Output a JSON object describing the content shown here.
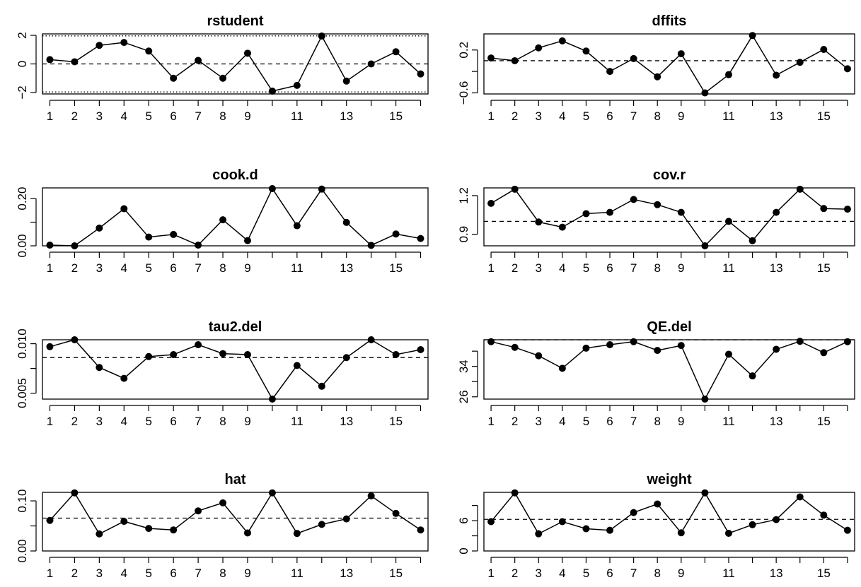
{
  "colors": {
    "ink": "#000000",
    "background": "#ffffff"
  },
  "chart_data": [
    {
      "type": "line",
      "title": "rstudent",
      "x": [
        1,
        2,
        3,
        4,
        5,
        6,
        7,
        8,
        9,
        10,
        11,
        12,
        13,
        14,
        15,
        16
      ],
      "values": [
        0.3,
        0.15,
        1.3,
        1.5,
        0.9,
        -1.0,
        0.25,
        -1.0,
        0.75,
        -1.9,
        -1.5,
        1.95,
        -1.2,
        0.0,
        0.85,
        -0.7
      ],
      "ylim": [
        -2.1,
        2.1
      ],
      "yticks": [
        -2,
        0,
        2
      ],
      "ytick_labels": [
        "−2",
        "0",
        "2"
      ],
      "xticks": [
        1,
        2,
        3,
        4,
        5,
        6,
        7,
        8,
        9,
        10,
        11,
        12,
        13,
        14,
        15,
        16
      ],
      "xtick_labels": [
        "1",
        "2",
        "3",
        "4",
        "5",
        "6",
        "7",
        "8",
        "9",
        "",
        "11",
        "",
        "13",
        "",
        "15",
        ""
      ],
      "ref_dashed": [
        0
      ],
      "ref_dotted": [
        -1.96,
        1.96
      ]
    },
    {
      "type": "line",
      "title": "dffits",
      "x": [
        1,
        2,
        3,
        4,
        5,
        6,
        7,
        8,
        9,
        10,
        11,
        12,
        13,
        14,
        15,
        16
      ],
      "values": [
        0.05,
        0.0,
        0.24,
        0.37,
        0.18,
        -0.2,
        0.04,
        -0.3,
        0.13,
        -0.6,
        -0.26,
        0.47,
        -0.27,
        -0.03,
        0.21,
        -0.15
      ],
      "ylim": [
        -0.62,
        0.5
      ],
      "yticks": [
        -0.6,
        -0.2,
        0.2
      ],
      "ytick_labels": [
        "−0.6",
        "",
        "0.2"
      ],
      "xticks": [
        1,
        2,
        3,
        4,
        5,
        6,
        7,
        8,
        9,
        10,
        11,
        12,
        13,
        14,
        15,
        16
      ],
      "xtick_labels": [
        "1",
        "2",
        "3",
        "4",
        "5",
        "6",
        "7",
        "8",
        "9",
        "",
        "11",
        "",
        "13",
        "",
        "15",
        ""
      ],
      "ref_dashed": [
        0
      ]
    },
    {
      "type": "line",
      "title": "cook.d",
      "x": [
        1,
        2,
        3,
        4,
        5,
        6,
        7,
        8,
        9,
        10,
        11,
        12,
        13,
        14,
        15,
        16
      ],
      "values": [
        0.003,
        0.0,
        0.075,
        0.157,
        0.037,
        0.048,
        0.003,
        0.11,
        0.022,
        0.242,
        0.085,
        0.24,
        0.099,
        0.002,
        0.05,
        0.031
      ],
      "ylim": [
        0.0,
        0.245
      ],
      "yticks": [
        0.0,
        0.1,
        0.2
      ],
      "ytick_labels": [
        "0.00",
        "",
        "0.20"
      ],
      "xticks": [
        1,
        2,
        3,
        4,
        5,
        6,
        7,
        8,
        9,
        10,
        11,
        12,
        13,
        14,
        15,
        16
      ],
      "xtick_labels": [
        "1",
        "2",
        "3",
        "4",
        "5",
        "6",
        "7",
        "8",
        "9",
        "",
        "11",
        "",
        "13",
        "",
        "15",
        ""
      ]
    },
    {
      "type": "line",
      "title": "cov.r",
      "x": [
        1,
        2,
        3,
        4,
        5,
        6,
        7,
        8,
        9,
        10,
        11,
        12,
        13,
        14,
        15,
        16
      ],
      "values": [
        1.14,
        1.25,
        0.995,
        0.955,
        1.06,
        1.07,
        1.17,
        1.13,
        1.07,
        0.81,
        1.0,
        0.85,
        1.07,
        1.25,
        1.1,
        1.095
      ],
      "ylim": [
        0.81,
        1.26
      ],
      "yticks": [
        0.9,
        1.2
      ],
      "ytick_labels": [
        "0.9",
        "1.2"
      ],
      "xticks": [
        1,
        2,
        3,
        4,
        5,
        6,
        7,
        8,
        9,
        10,
        11,
        12,
        13,
        14,
        15,
        16
      ],
      "xtick_labels": [
        "1",
        "2",
        "3",
        "4",
        "5",
        "6",
        "7",
        "8",
        "9",
        "",
        "11",
        "",
        "13",
        "",
        "15",
        ""
      ],
      "ref_dashed": [
        1.0
      ]
    },
    {
      "type": "line",
      "title": "tau2.del",
      "x": [
        1,
        2,
        3,
        4,
        5,
        6,
        7,
        8,
        9,
        10,
        11,
        12,
        13,
        14,
        15,
        16
      ],
      "values": [
        0.0097,
        0.0104,
        0.0076,
        0.0065,
        0.0087,
        0.0089,
        0.0099,
        0.009,
        0.0089,
        0.0044,
        0.0078,
        0.0057,
        0.0086,
        0.0104,
        0.0089,
        0.0094
      ],
      "ylim": [
        0.0044,
        0.0104
      ],
      "yticks": [
        0.005,
        0.0075,
        0.01
      ],
      "ytick_labels": [
        "0.005",
        "",
        "0.010"
      ],
      "xticks": [
        1,
        2,
        3,
        4,
        5,
        6,
        7,
        8,
        9,
        10,
        11,
        12,
        13,
        14,
        15,
        16
      ],
      "xtick_labels": [
        "1",
        "2",
        "3",
        "4",
        "5",
        "6",
        "7",
        "8",
        "9",
        "",
        "11",
        "",
        "13",
        "",
        "15",
        ""
      ],
      "ref_dashed": [
        0.0086
      ]
    },
    {
      "type": "line",
      "title": "QE.del",
      "x": [
        1,
        2,
        3,
        4,
        5,
        6,
        7,
        8,
        9,
        10,
        11,
        12,
        13,
        14,
        15,
        16
      ],
      "values": [
        40.5,
        39.0,
        36.8,
        33.5,
        38.8,
        39.7,
        40.5,
        38.2,
        39.5,
        25.4,
        37.2,
        31.5,
        38.5,
        40.6,
        37.6,
        40.5
      ],
      "ylim": [
        25.4,
        41.0
      ],
      "yticks": [
        26,
        30,
        34,
        38
      ],
      "ytick_labels": [
        "26",
        "",
        "34",
        ""
      ],
      "xticks": [
        1,
        2,
        3,
        4,
        5,
        6,
        7,
        8,
        9,
        10,
        11,
        12,
        13,
        14,
        15,
        16
      ],
      "xtick_labels": [
        "1",
        "2",
        "3",
        "4",
        "5",
        "6",
        "7",
        "8",
        "9",
        "",
        "11",
        "",
        "13",
        "",
        "15",
        ""
      ],
      "ref_dashed": [
        41.0
      ]
    },
    {
      "type": "line",
      "title": "hat",
      "x": [
        1,
        2,
        3,
        4,
        5,
        6,
        7,
        8,
        9,
        10,
        11,
        12,
        13,
        14,
        15,
        16
      ],
      "values": [
        0.061,
        0.116,
        0.034,
        0.059,
        0.045,
        0.042,
        0.08,
        0.096,
        0.036,
        0.116,
        0.035,
        0.053,
        0.064,
        0.11,
        0.075,
        0.042
      ],
      "ylim": [
        0.0,
        0.117
      ],
      "yticks": [
        0.0,
        0.05,
        0.1
      ],
      "ytick_labels": [
        "0.00",
        "",
        "0.10"
      ],
      "xticks": [
        1,
        2,
        3,
        4,
        5,
        6,
        7,
        8,
        9,
        10,
        11,
        12,
        13,
        14,
        15,
        16
      ],
      "xtick_labels": [
        "1",
        "2",
        "3",
        "4",
        "5",
        "6",
        "7",
        "8",
        "9",
        "",
        "11",
        "",
        "13",
        "",
        "15",
        ""
      ],
      "ref_dashed": [
        0.0656
      ]
    },
    {
      "type": "line",
      "title": "weight",
      "x": [
        1,
        2,
        3,
        4,
        5,
        6,
        7,
        8,
        9,
        10,
        11,
        12,
        13,
        14,
        15,
        16
      ],
      "values": [
        5.8,
        11.5,
        3.4,
        5.8,
        4.4,
        4.1,
        7.6,
        9.3,
        3.6,
        11.5,
        3.5,
        5.2,
        6.2,
        10.7,
        7.1,
        4.1
      ],
      "ylim": [
        0.0,
        11.6
      ],
      "yticks": [
        0,
        3,
        6,
        9
      ],
      "ytick_labels": [
        "0",
        "",
        "6",
        ""
      ],
      "xticks": [
        1,
        2,
        3,
        4,
        5,
        6,
        7,
        8,
        9,
        10,
        11,
        12,
        13,
        14,
        15,
        16
      ],
      "xtick_labels": [
        "1",
        "2",
        "3",
        "4",
        "5",
        "6",
        "7",
        "8",
        "9",
        "",
        "11",
        "",
        "13",
        "",
        "15",
        ""
      ],
      "ref_dashed": [
        6.25
      ]
    }
  ]
}
